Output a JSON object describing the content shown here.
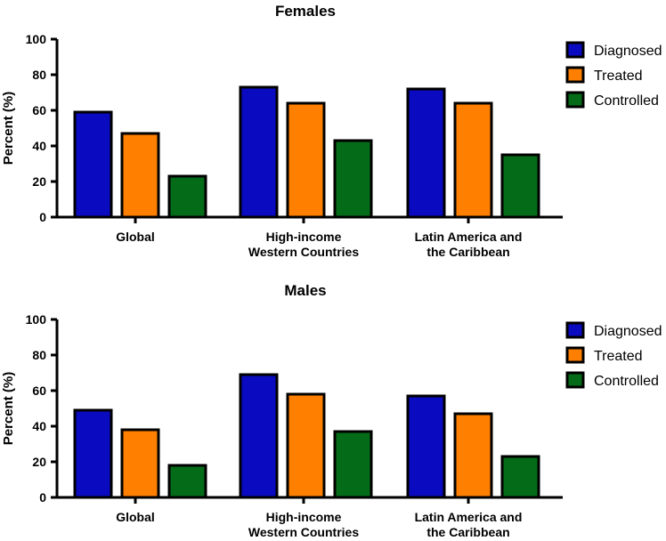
{
  "chart_data": [
    {
      "type": "bar",
      "title": "Females",
      "ylabel": "Percent (%)",
      "xlabel": "",
      "ylim": [
        0,
        100
      ],
      "yticks": [
        "0",
        "20",
        "40",
        "60",
        "80",
        "100"
      ],
      "categories": [
        [
          "Global"
        ],
        [
          "High-income",
          "Western Countries"
        ],
        [
          "Latin America and",
          "the Caribbean"
        ]
      ],
      "series": [
        {
          "name": "Diagnosed",
          "color": "#0a0ac0",
          "values": [
            59,
            73,
            72
          ]
        },
        {
          "name": "Treated",
          "color": "#ff8000",
          "values": [
            47,
            64,
            64
          ]
        },
        {
          "name": "Controlled",
          "color": "#046b18",
          "values": [
            23,
            43,
            35
          ]
        }
      ]
    },
    {
      "type": "bar",
      "title": "Males",
      "ylabel": "Percent (%)",
      "xlabel": "",
      "ylim": [
        0,
        100
      ],
      "yticks": [
        "0",
        "20",
        "40",
        "60",
        "80",
        "100"
      ],
      "categories": [
        [
          "Global"
        ],
        [
          "High-income",
          "Western Countries"
        ],
        [
          "Latin America and",
          "the Caribbean"
        ]
      ],
      "series": [
        {
          "name": "Diagnosed",
          "color": "#0a0ac0",
          "values": [
            49,
            69,
            57
          ]
        },
        {
          "name": "Treated",
          "color": "#ff8000",
          "values": [
            38,
            58,
            47
          ]
        },
        {
          "name": "Controlled",
          "color": "#046b18",
          "values": [
            18,
            37,
            23
          ]
        }
      ]
    }
  ]
}
